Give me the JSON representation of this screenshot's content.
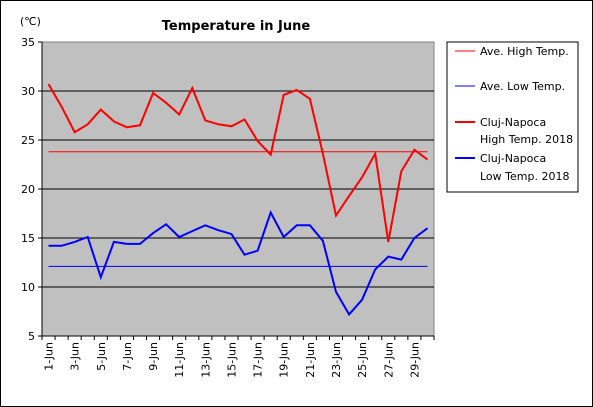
{
  "chart_data": {
    "type": "line",
    "title": "Temperature in June",
    "ylabel": "(℃)",
    "ylim": [
      5,
      35
    ],
    "yticks": [
      5,
      10,
      15,
      20,
      25,
      30,
      35
    ],
    "x": [
      1,
      2,
      3,
      4,
      5,
      6,
      7,
      8,
      9,
      10,
      11,
      12,
      13,
      14,
      15,
      16,
      17,
      18,
      19,
      20,
      21,
      22,
      23,
      24,
      25,
      26,
      27,
      28,
      29,
      30
    ],
    "xtick_labels": [
      "1-Jun",
      "3-Jun",
      "5-Jun",
      "7-Jun",
      "9-Jun",
      "11-Jun",
      "13-Jun",
      "15-Jun",
      "17-Jun",
      "19-Jun",
      "21-Jun",
      "23-Jun",
      "25-Jun",
      "27-Jun",
      "29-Jun"
    ],
    "grid": true,
    "background": "#c0c0c0",
    "legend_position": "right",
    "series": [
      {
        "name": "Ave. High Temp.",
        "color": "#ff0000",
        "width": 1,
        "values": [
          23.8,
          23.8,
          23.8,
          23.8,
          23.8,
          23.8,
          23.8,
          23.8,
          23.8,
          23.8,
          23.8,
          23.8,
          23.8,
          23.8,
          23.8,
          23.8,
          23.8,
          23.8,
          23.8,
          23.8,
          23.8,
          23.8,
          23.8,
          23.8,
          23.8,
          23.8,
          23.8,
          23.8,
          23.8,
          23.8
        ]
      },
      {
        "name": "Ave. Low Temp.",
        "color": "#0000ff",
        "width": 1,
        "values": [
          12.1,
          12.1,
          12.1,
          12.1,
          12.1,
          12.1,
          12.1,
          12.1,
          12.1,
          12.1,
          12.1,
          12.1,
          12.1,
          12.1,
          12.1,
          12.1,
          12.1,
          12.1,
          12.1,
          12.1,
          12.1,
          12.1,
          12.1,
          12.1,
          12.1,
          12.1,
          12.1,
          12.1,
          12.1,
          12.1
        ]
      },
      {
        "name": "Cluj-Napoca\nHigh Temp. 2018",
        "color": "#ff0000",
        "width": 2,
        "values": [
          30.7,
          28.4,
          25.8,
          26.6,
          28.1,
          26.9,
          26.3,
          26.5,
          29.8,
          28.8,
          27.6,
          30.3,
          27.0,
          26.6,
          26.4,
          27.1,
          24.9,
          23.5,
          29.6,
          30.1,
          29.2,
          23.6,
          17.3,
          19.3,
          21.2,
          23.6,
          14.6,
          21.8,
          24.0,
          23.0
        ]
      },
      {
        "name": "Cluj-Napoca\nLow Temp. 2018",
        "color": "#0000ff",
        "width": 2,
        "values": [
          14.2,
          14.2,
          14.6,
          15.1,
          11.0,
          14.6,
          14.4,
          14.4,
          15.5,
          16.4,
          15.1,
          15.7,
          16.3,
          15.8,
          15.4,
          13.3,
          13.7,
          17.6,
          15.1,
          16.3,
          16.3,
          14.7,
          9.5,
          7.2,
          8.7,
          11.8,
          13.1,
          12.8,
          15.0,
          16.0
        ]
      }
    ]
  }
}
